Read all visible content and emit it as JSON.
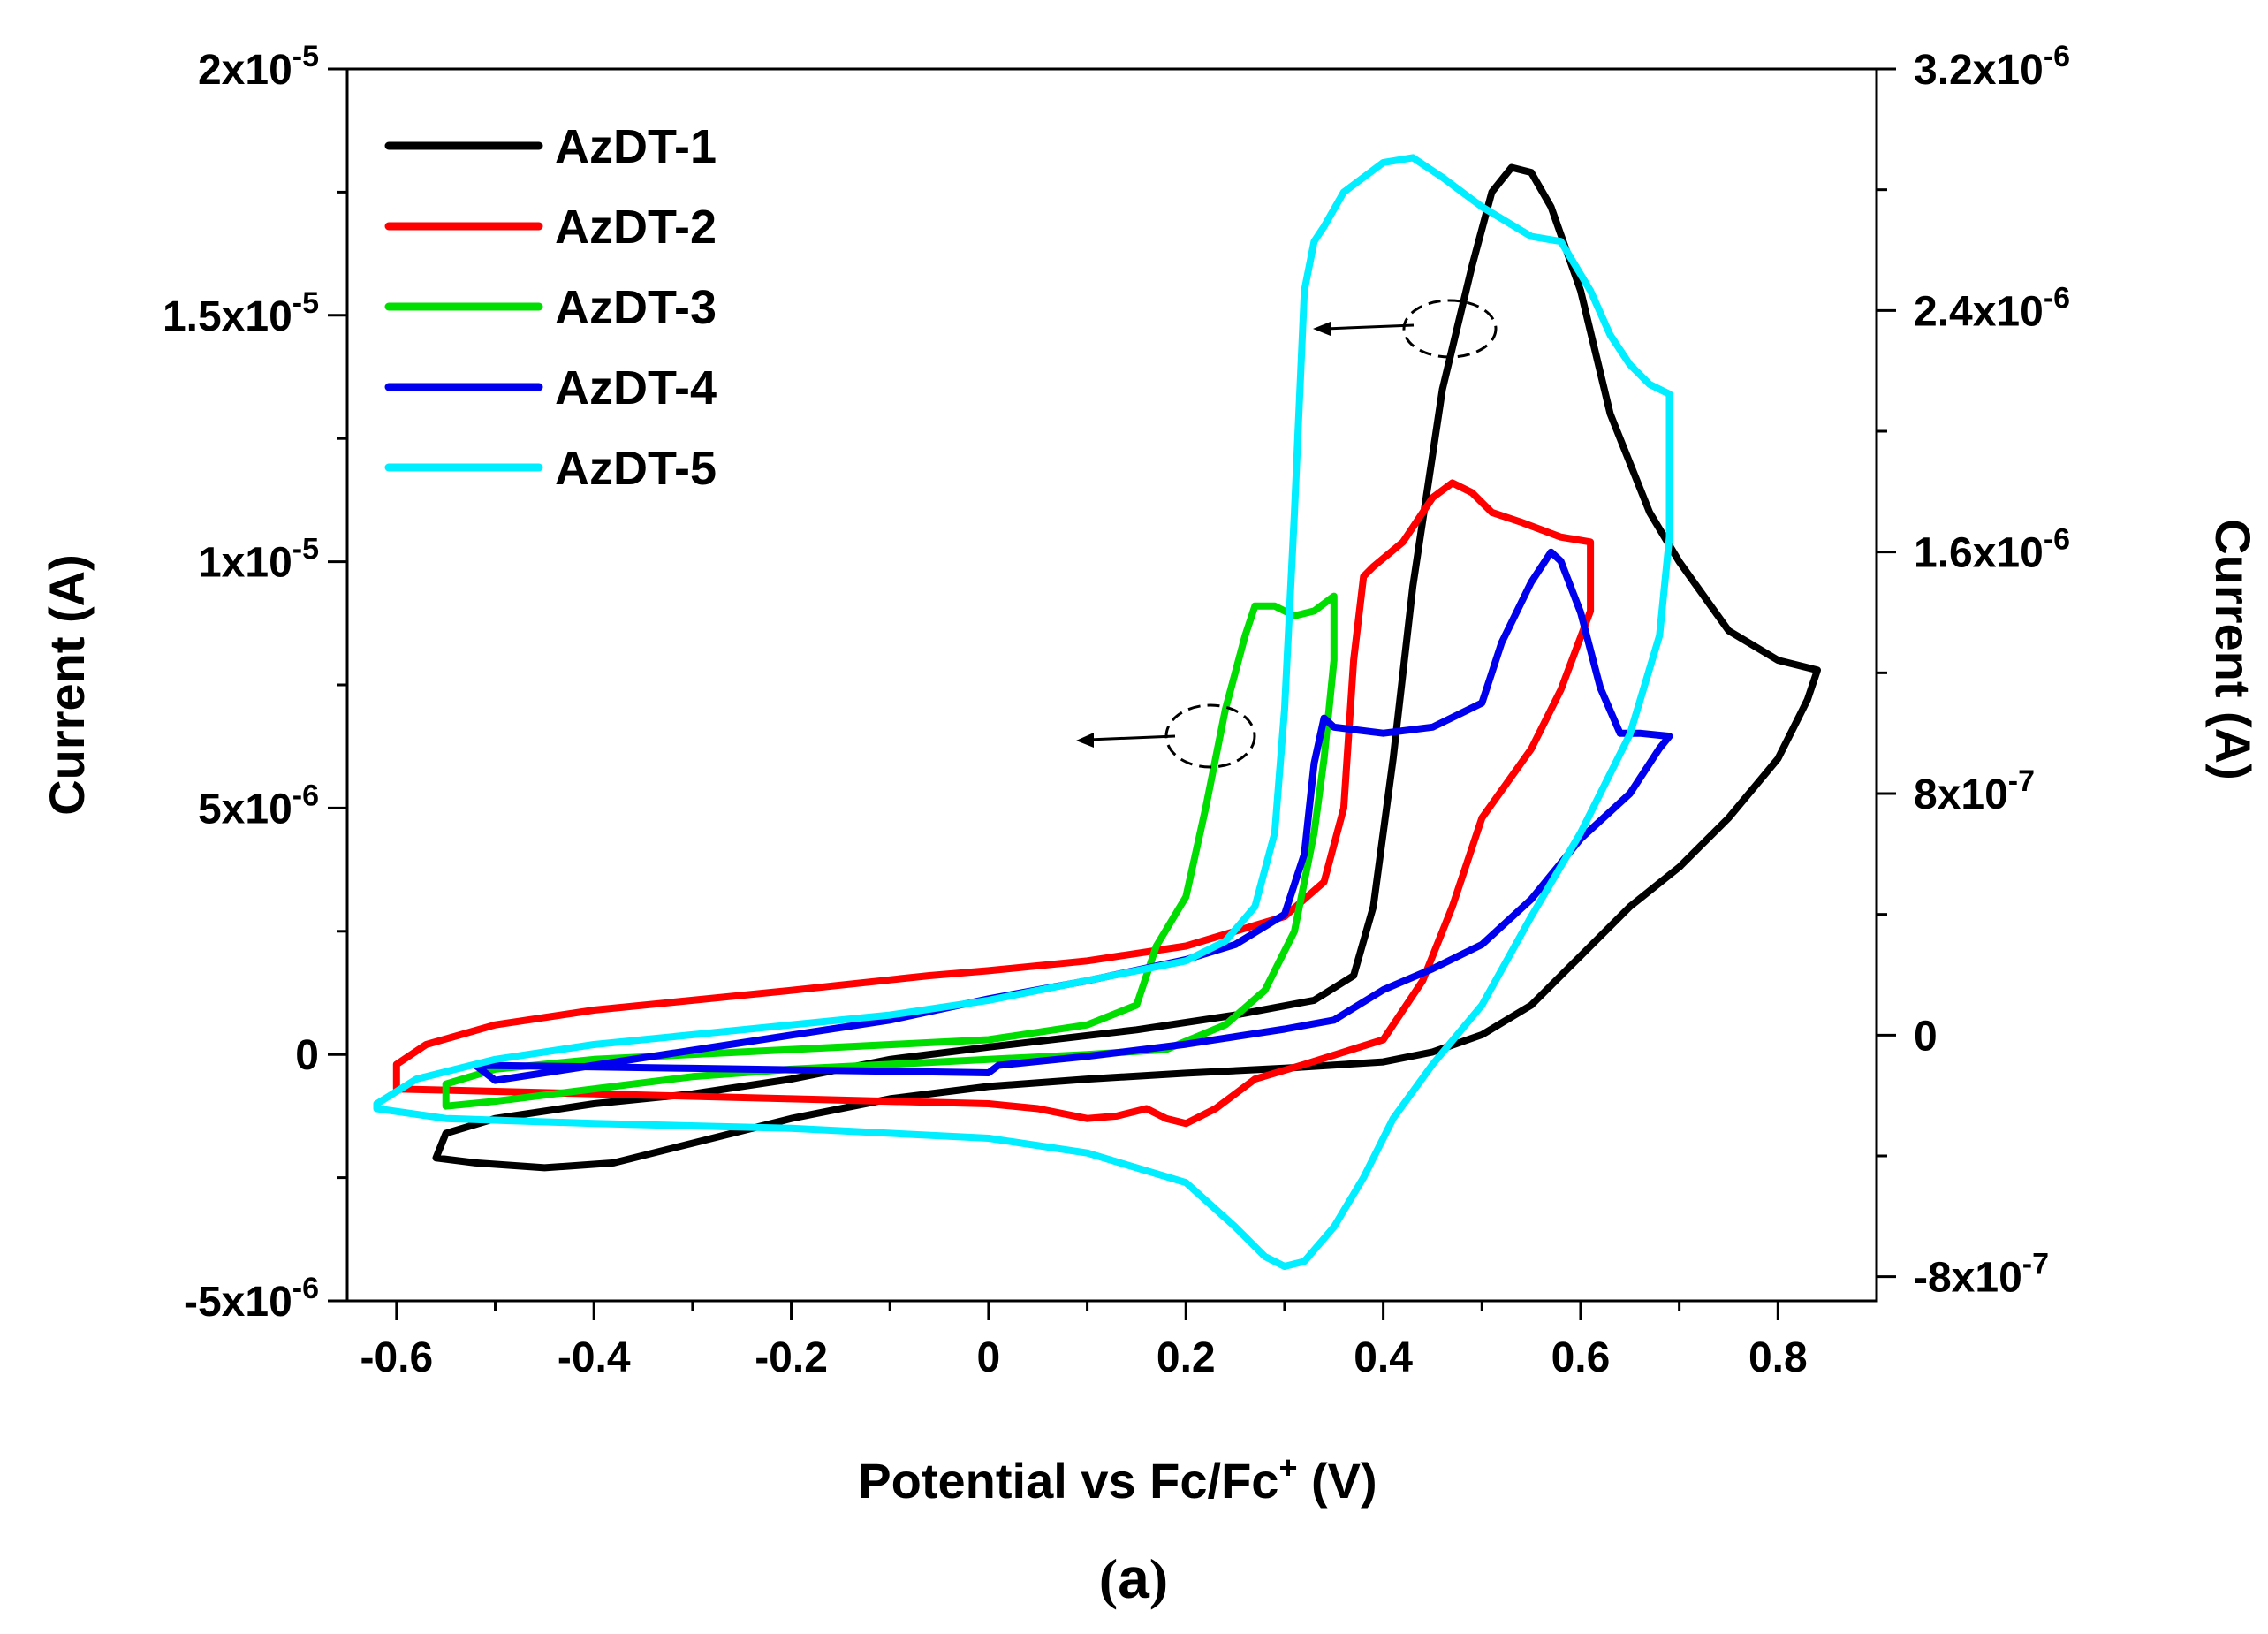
{
  "chart_data": {
    "type": "line",
    "title": "",
    "xlabel": "Potential vs Fc/Fc",
    "xlabel_sup": "+",
    "xlabel_unit": " (V)",
    "ylabel_left": "Current (A)",
    "ylabel_right": "Current (A)",
    "caption_open": "(",
    "caption_letter": "a",
    "caption_close": ")",
    "xlim": [
      -0.65,
      0.9
    ],
    "ylim_left": [
      -5e-06,
      2e-05
    ],
    "ylim_right": [
      -8.8e-07,
      3.2e-06
    ],
    "x_ticks": [
      {
        "value": -0.6,
        "label": "-0.6"
      },
      {
        "value": -0.4,
        "label": "-0.4"
      },
      {
        "value": -0.2,
        "label": "-0.2"
      },
      {
        "value": 0,
        "label": "0"
      },
      {
        "value": 0.2,
        "label": "0.2"
      },
      {
        "value": 0.4,
        "label": "0.4"
      },
      {
        "value": 0.6,
        "label": "0.6"
      },
      {
        "value": 0.8,
        "label": "0.8"
      }
    ],
    "y_left_ticks": [
      {
        "value": 2e-05,
        "base": "2x10",
        "exp": "-5"
      },
      {
        "value": 1.5e-05,
        "base": "1.5x10",
        "exp": "-5"
      },
      {
        "value": 1e-05,
        "base": "1x10",
        "exp": "-5"
      },
      {
        "value": 5e-06,
        "base": "5x10",
        "exp": "-6"
      },
      {
        "value": 0,
        "base": "0",
        "exp": ""
      },
      {
        "value": -5e-06,
        "base": "-5x10",
        "exp": "-6"
      }
    ],
    "y_right_ticks": [
      {
        "value": 3.2e-06,
        "base": "3.2x10",
        "exp": "-6"
      },
      {
        "value": 2.4e-06,
        "base": "2.4x10",
        "exp": "-6"
      },
      {
        "value": 1.6e-06,
        "base": "1.6x10",
        "exp": "-6"
      },
      {
        "value": 8e-07,
        "base": "8x10",
        "exp": "-7"
      },
      {
        "value": 0,
        "base": "0",
        "exp": ""
      },
      {
        "value": -8e-07,
        "base": "-8x10",
        "exp": "-7"
      }
    ],
    "legend_position": "top-left",
    "series": [
      {
        "name": "AzDT-1",
        "color": "#000000",
        "axis": "left",
        "points": [
          [
            -0.56,
            -2.1e-06
          ],
          [
            -0.52,
            -2.2e-06
          ],
          [
            -0.45,
            -2.3e-06
          ],
          [
            -0.38,
            -2.2e-06
          ],
          [
            -0.3,
            -1.8e-06
          ],
          [
            -0.2,
            -1.3e-06
          ],
          [
            -0.1,
            -9e-07
          ],
          [
            0,
            -6.5e-07
          ],
          [
            0.1,
            -5e-07
          ],
          [
            0.2,
            -3.8e-07
          ],
          [
            0.3,
            -2.8e-07
          ],
          [
            0.4,
            -1.5e-07
          ],
          [
            0.45,
            5e-08
          ],
          [
            0.5,
            4e-07
          ],
          [
            0.55,
            1e-06
          ],
          [
            0.6,
            2e-06
          ],
          [
            0.65,
            3e-06
          ],
          [
            0.7,
            3.8e-06
          ],
          [
            0.75,
            4.8e-06
          ],
          [
            0.8,
            6e-06
          ],
          [
            0.83,
            7.2e-06
          ],
          [
            0.84,
            7.8e-06
          ],
          [
            0.8,
            8e-06
          ],
          [
            0.75,
            8.6e-06
          ],
          [
            0.7,
            1e-05
          ],
          [
            0.67,
            1.1e-05
          ],
          [
            0.63,
            1.3e-05
          ],
          [
            0.6,
            1.55e-05
          ],
          [
            0.57,
            1.72e-05
          ],
          [
            0.55,
            1.79e-05
          ],
          [
            0.53,
            1.8e-05
          ],
          [
            0.51,
            1.75e-05
          ],
          [
            0.49,
            1.6e-05
          ],
          [
            0.46,
            1.35e-05
          ],
          [
            0.43,
            9.5e-06
          ],
          [
            0.41,
            6e-06
          ],
          [
            0.39,
            3e-06
          ],
          [
            0.37,
            1.6e-06
          ],
          [
            0.33,
            1.1e-06
          ],
          [
            0.25,
            8e-07
          ],
          [
            0.15,
            5e-07
          ],
          [
            0,
            1.5e-07
          ],
          [
            -0.1,
            -1e-07
          ],
          [
            -0.2,
            -5e-07
          ],
          [
            -0.3,
            -8e-07
          ],
          [
            -0.4,
            -1e-06
          ],
          [
            -0.5,
            -1.3e-06
          ],
          [
            -0.55,
            -1.6e-06
          ]
        ]
      },
      {
        "name": "AzDT-2",
        "color": "#ff0000",
        "axis": "left",
        "points": [
          [
            -0.6,
            -7e-07
          ],
          [
            -0.5,
            -7.5e-07
          ],
          [
            -0.4,
            -8e-07
          ],
          [
            -0.2,
            -9e-07
          ],
          [
            0,
            -1e-06
          ],
          [
            0.05,
            -1.1e-06
          ],
          [
            0.1,
            -1.3e-06
          ],
          [
            0.13,
            -1.25e-06
          ],
          [
            0.16,
            -1.1e-06
          ],
          [
            0.18,
            -1.3e-06
          ],
          [
            0.2,
            -1.4e-06
          ],
          [
            0.23,
            -1.1e-06
          ],
          [
            0.27,
            -5e-07
          ],
          [
            0.32,
            -2e-07
          ],
          [
            0.4,
            3e-07
          ],
          [
            0.44,
            1.5e-06
          ],
          [
            0.47,
            3e-06
          ],
          [
            0.5,
            4.8e-06
          ],
          [
            0.55,
            6.2e-06
          ],
          [
            0.58,
            7.4e-06
          ],
          [
            0.61,
            9e-06
          ],
          [
            0.61,
            1.04e-05
          ],
          [
            0.58,
            1.05e-05
          ],
          [
            0.54,
            1.08e-05
          ],
          [
            0.51,
            1.1e-05
          ],
          [
            0.49,
            1.14e-05
          ],
          [
            0.47,
            1.16e-05
          ],
          [
            0.45,
            1.13e-05
          ],
          [
            0.42,
            1.04e-05
          ],
          [
            0.39,
            9.9e-06
          ],
          [
            0.38,
            9.7e-06
          ],
          [
            0.37,
            8e-06
          ],
          [
            0.36,
            5e-06
          ],
          [
            0.34,
            3.5e-06
          ],
          [
            0.3,
            2.8e-06
          ],
          [
            0.2,
            2.2e-06
          ],
          [
            0.1,
            1.9e-06
          ],
          [
            0,
            1.7e-06
          ],
          [
            -0.06,
            1.6e-06
          ],
          [
            -0.2,
            1.3e-06
          ],
          [
            -0.3,
            1.1e-06
          ],
          [
            -0.4,
            9e-07
          ],
          [
            -0.5,
            6e-07
          ],
          [
            -0.57,
            2e-07
          ],
          [
            -0.6,
            -2e-07
          ]
        ]
      },
      {
        "name": "AzDT-3",
        "color": "#00dd00",
        "axis": "left",
        "points": [
          [
            -0.55,
            -1.05e-06
          ],
          [
            -0.5,
            -9.5e-07
          ],
          [
            -0.4,
            -7e-07
          ],
          [
            -0.3,
            -4.5e-07
          ],
          [
            -0.2,
            -3e-07
          ],
          [
            -0.1,
            -2e-07
          ],
          [
            0,
            -1e-07
          ],
          [
            0.1,
            0.0
          ],
          [
            0.18,
            1e-07
          ],
          [
            0.24,
            6e-07
          ],
          [
            0.28,
            1.3e-06
          ],
          [
            0.31,
            2.5e-06
          ],
          [
            0.33,
            4.5e-06
          ],
          [
            0.34,
            6e-06
          ],
          [
            0.35,
            8e-06
          ],
          [
            0.35,
            9.3e-06
          ],
          [
            0.33,
            9e-06
          ],
          [
            0.31,
            8.9e-06
          ],
          [
            0.29,
            9.1e-06
          ],
          [
            0.27,
            9.1e-06
          ],
          [
            0.26,
            8.5e-06
          ],
          [
            0.24,
            7e-06
          ],
          [
            0.22,
            5e-06
          ],
          [
            0.2,
            3.2e-06
          ],
          [
            0.17,
            2.2e-06
          ],
          [
            0.15,
            1e-06
          ],
          [
            0.1,
            6e-07
          ],
          [
            0,
            3e-07
          ],
          [
            -0.2,
            1e-07
          ],
          [
            -0.4,
            -1e-07
          ],
          [
            -0.5,
            -3e-07
          ],
          [
            -0.55,
            -6e-07
          ]
        ]
      },
      {
        "name": "AzDT-4",
        "color": "#0000ee",
        "axis": "right",
        "points": [
          [
            -0.52,
            -1e-07
          ],
          [
            -0.4,
            -1.05e-07
          ],
          [
            -0.3,
            -1.1e-07
          ],
          [
            -0.2,
            -1.15e-07
          ],
          [
            -0.1,
            -1.2e-07
          ],
          [
            0,
            -1.25e-07
          ],
          [
            0.01,
            -1e-07
          ],
          [
            0.1,
            -7e-08
          ],
          [
            0.2,
            -3e-08
          ],
          [
            0.3,
            2e-08
          ],
          [
            0.35,
            5e-08
          ],
          [
            0.4,
            1.5e-07
          ],
          [
            0.45,
            2.2e-07
          ],
          [
            0.5,
            3e-07
          ],
          [
            0.55,
            4.5e-07
          ],
          [
            0.6,
            6.5e-07
          ],
          [
            0.65,
            8e-07
          ],
          [
            0.68,
            9.5e-07
          ],
          [
            0.69,
            9.9e-07
          ],
          [
            0.66,
            1e-06
          ],
          [
            0.64,
            1e-06
          ],
          [
            0.62,
            1.15e-06
          ],
          [
            0.6,
            1.4e-06
          ],
          [
            0.58,
            1.57e-06
          ],
          [
            0.57,
            1.6e-06
          ],
          [
            0.55,
            1.5e-06
          ],
          [
            0.52,
            1.3e-06
          ],
          [
            0.5,
            1.1e-06
          ],
          [
            0.45,
            1.02e-06
          ],
          [
            0.4,
            1e-06
          ],
          [
            0.35,
            1.02e-06
          ],
          [
            0.34,
            1.05e-06
          ],
          [
            0.33,
            9e-07
          ],
          [
            0.32,
            6e-07
          ],
          [
            0.3,
            4e-07
          ],
          [
            0.25,
            3e-07
          ],
          [
            0.2,
            2.5e-07
          ],
          [
            0.1,
            1.8e-07
          ],
          [
            0,
            1.2e-07
          ],
          [
            -0.1,
            5e-08
          ],
          [
            -0.2,
            0.0
          ],
          [
            -0.3,
            -5e-08
          ],
          [
            -0.4,
            -1e-07
          ],
          [
            -0.5,
            -1.5e-07
          ]
        ]
      },
      {
        "name": "AzDT-5",
        "color": "#00eeff",
        "axis": "left",
        "points": [
          [
            -0.62,
            -1.1e-06
          ],
          [
            -0.55,
            -1.3e-06
          ],
          [
            -0.4,
            -1.4e-06
          ],
          [
            -0.2,
            -1.5e-06
          ],
          [
            0,
            -1.7e-06
          ],
          [
            0.1,
            -2e-06
          ],
          [
            0.2,
            -2.6e-06
          ],
          [
            0.25,
            -3.5e-06
          ],
          [
            0.28,
            -4.1e-06
          ],
          [
            0.3,
            -4.3e-06
          ],
          [
            0.32,
            -4.2e-06
          ],
          [
            0.35,
            -3.5e-06
          ],
          [
            0.38,
            -2.5e-06
          ],
          [
            0.41,
            -1.3e-06
          ],
          [
            0.45,
            -2e-07
          ],
          [
            0.5,
            1e-06
          ],
          [
            0.55,
            2.8e-06
          ],
          [
            0.6,
            4.5e-06
          ],
          [
            0.65,
            6.5e-06
          ],
          [
            0.68,
            8.5e-06
          ],
          [
            0.69,
            1.05e-05
          ],
          [
            0.69,
            1.34e-05
          ],
          [
            0.67,
            1.36e-05
          ],
          [
            0.65,
            1.4e-05
          ],
          [
            0.63,
            1.46e-05
          ],
          [
            0.61,
            1.55e-05
          ],
          [
            0.58,
            1.65e-05
          ],
          [
            0.55,
            1.66e-05
          ],
          [
            0.5,
            1.72e-05
          ],
          [
            0.46,
            1.78e-05
          ],
          [
            0.43,
            1.82e-05
          ],
          [
            0.4,
            1.81e-05
          ],
          [
            0.36,
            1.75e-05
          ],
          [
            0.34,
            1.68e-05
          ],
          [
            0.33,
            1.65e-05
          ],
          [
            0.32,
            1.55e-05
          ],
          [
            0.31,
            1.1e-05
          ],
          [
            0.3,
            7e-06
          ],
          [
            0.29,
            4.5e-06
          ],
          [
            0.27,
            3e-06
          ],
          [
            0.24,
            2.3e-06
          ],
          [
            0.2,
            1.9e-06
          ],
          [
            0.1,
            1.5e-06
          ],
          [
            0,
            1.1e-06
          ],
          [
            -0.1,
            8e-07
          ],
          [
            -0.2,
            6e-07
          ],
          [
            -0.3,
            4e-07
          ],
          [
            -0.4,
            2e-07
          ],
          [
            -0.5,
            -1e-07
          ],
          [
            -0.58,
            -5e-07
          ],
          [
            -0.62,
            -1e-06
          ]
        ]
      }
    ]
  }
}
